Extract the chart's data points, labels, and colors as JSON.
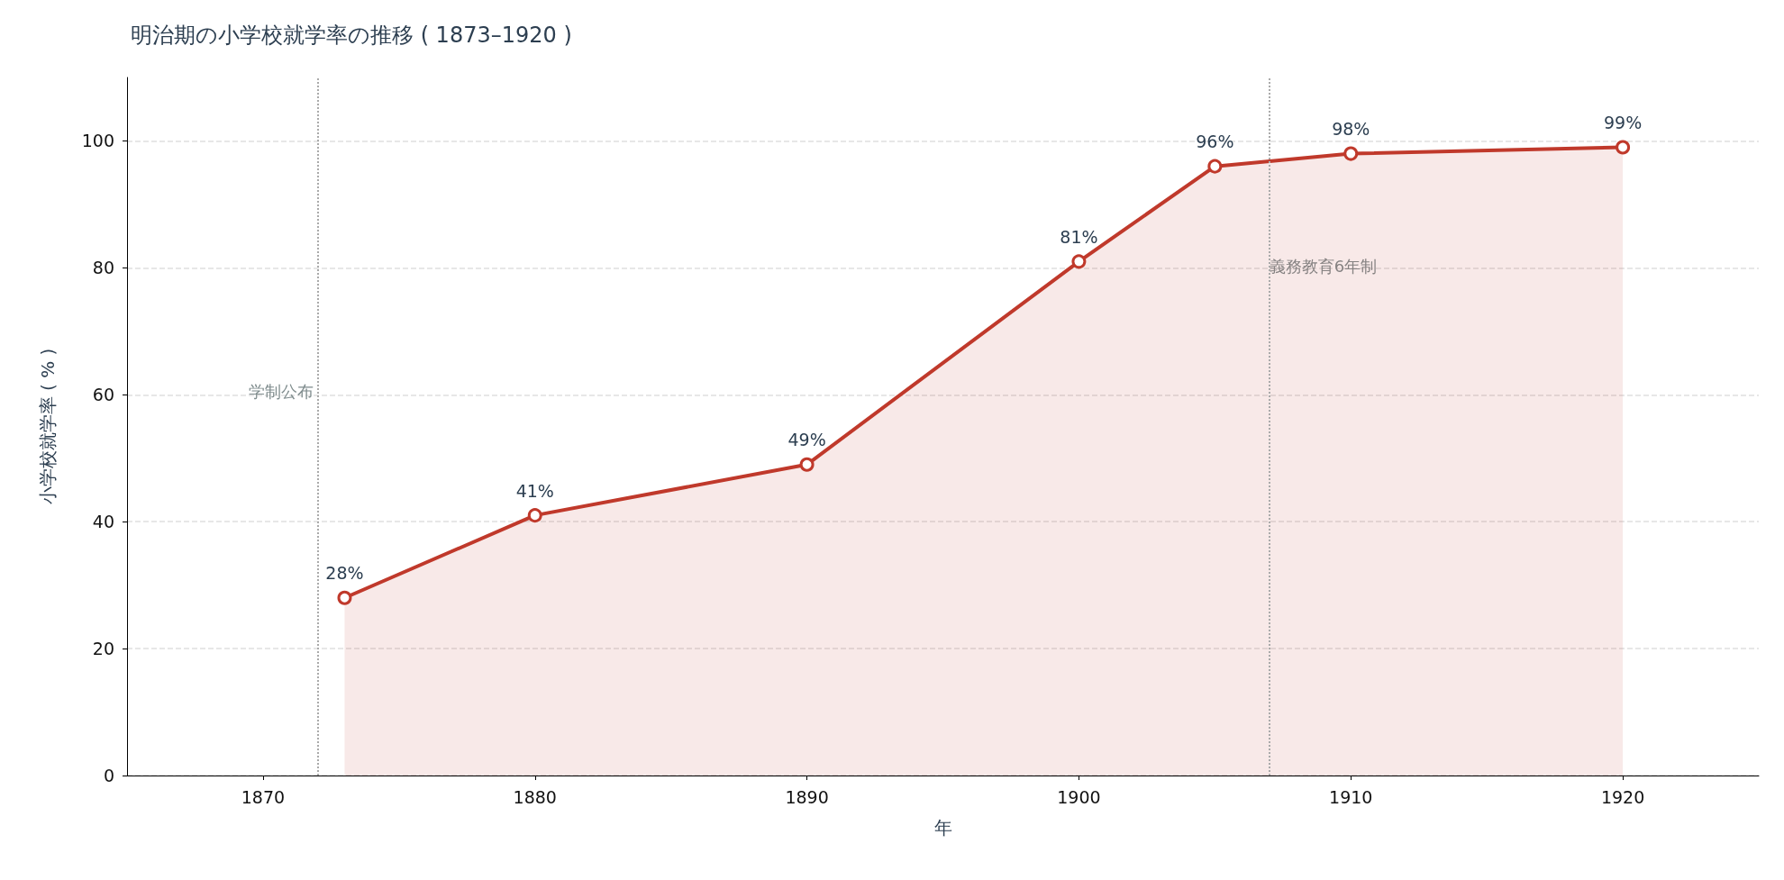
{
  "chart_data": {
    "type": "area",
    "title": "明治期の小学校就学率の推移 ( 1873–1920 )",
    "xlabel": "年",
    "ylabel": "小学校就学率 ( % )",
    "x": [
      1873,
      1880,
      1890,
      1900,
      1905,
      1910,
      1920
    ],
    "series": [
      {
        "color": "#c0392b",
        "values": [
          28,
          41,
          49,
          81,
          96,
          98,
          99
        ],
        "value_labels": [
          "28%",
          "41%",
          "49%",
          "81%",
          "96%",
          "98%",
          "99%"
        ]
      }
    ],
    "xlim": [
      1865,
      1925
    ],
    "xticks": [
      1870,
      1880,
      1890,
      1900,
      1910,
      1920
    ],
    "ylim": [
      0,
      110
    ],
    "yticks": [
      0,
      20,
      40,
      60,
      80,
      100
    ],
    "grid": "y",
    "marker": "circle",
    "line_style": "solid",
    "ref_lines": [
      {
        "axis": "x",
        "value": 1872,
        "label": "学制公布",
        "color": "#aaaaaa",
        "line_style": "dotted"
      },
      {
        "axis": "x",
        "value": 1907,
        "label": "義務教育6年制",
        "color": "#aaaaaa",
        "line_style": "dotted"
      }
    ]
  }
}
